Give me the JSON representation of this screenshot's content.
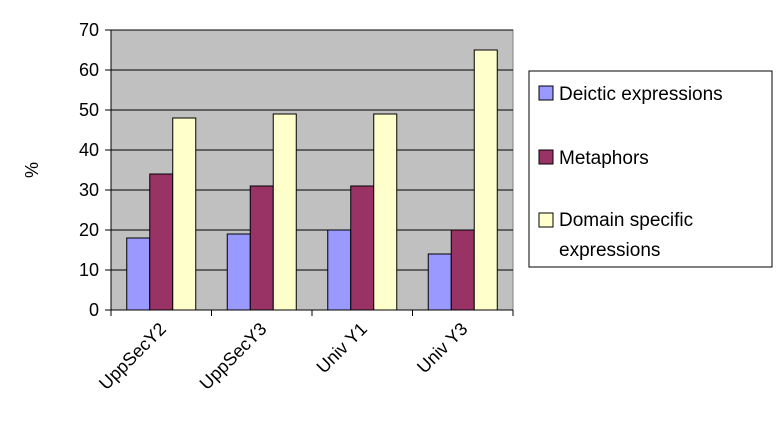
{
  "chart_data": {
    "type": "bar",
    "title": "",
    "xlabel": "",
    "ylabel": "%",
    "ylim": [
      0,
      70
    ],
    "yticks": [
      0,
      10,
      20,
      30,
      40,
      50,
      60,
      70
    ],
    "grid": true,
    "legend_position": "right",
    "categories": [
      "UppSecY2",
      "UppSecY3",
      "Univ Y1",
      "Univ Y3"
    ],
    "series": [
      {
        "name": "Deictic expressions",
        "color": "#9999FF",
        "values": [
          18,
          19,
          20,
          14
        ]
      },
      {
        "name": "Metaphors",
        "color": "#993366",
        "values": [
          34,
          31,
          31,
          20
        ]
      },
      {
        "name": "Domain specific expressions",
        "color": "#FFFFCC",
        "values": [
          48,
          49,
          49,
          65
        ]
      }
    ],
    "plot_background": "#C0C0C0"
  }
}
